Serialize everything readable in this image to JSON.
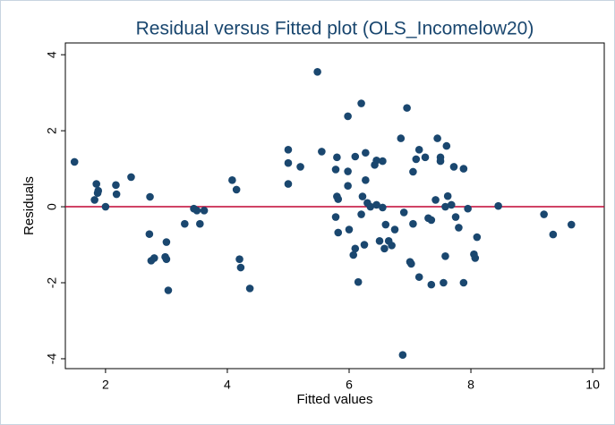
{
  "chart_data": {
    "type": "scatter",
    "title": "Residual versus Fitted plot (OLS_Incomelow20)",
    "x_label": "Fitted values",
    "y_label": "Residuals",
    "color": "#1a476f",
    "refline": 0,
    "refline_color": "#c10534",
    "grid": false,
    "xlim": [
      1.34,
      10.19
    ],
    "ylim": [
      -4.26,
      4.31
    ],
    "xticks": [
      2,
      4,
      6,
      8,
      10
    ],
    "yticks": [
      -4,
      -2,
      0,
      2,
      4
    ],
    "x": [
      1.49,
      1.85,
      1.88,
      1.87,
      1.82,
      2.0,
      2.17,
      2.18,
      2.42,
      2.73,
      2.72,
      2.75,
      2.8,
      2.98,
      3.0,
      3.0,
      3.03,
      3.3,
      3.45,
      3.5,
      3.55,
      3.62,
      4.08,
      4.15,
      4.2,
      4.22,
      4.37,
      5.0,
      5.0,
      5.0,
      5.2,
      5.48,
      5.55,
      5.8,
      5.78,
      5.8,
      5.82,
      5.78,
      5.82,
      5.98,
      5.98,
      5.98,
      6.0,
      6.1,
      6.1,
      6.07,
      6.15,
      6.2,
      6.2,
      6.22,
      6.25,
      6.27,
      6.27,
      6.3,
      6.35,
      6.42,
      6.45,
      6.45,
      6.5,
      6.55,
      6.55,
      6.58,
      6.6,
      6.65,
      6.7,
      6.75,
      6.85,
      6.88,
      6.9,
      6.95,
      7.0,
      7.02,
      7.05,
      7.05,
      7.1,
      7.15,
      7.15,
      7.25,
      7.3,
      7.35,
      7.35,
      7.42,
      7.45,
      7.5,
      7.5,
      7.55,
      7.58,
      7.58,
      7.6,
      7.62,
      7.68,
      7.72,
      7.75,
      7.8,
      7.88,
      7.88,
      7.95,
      8.05,
      8.07,
      8.1,
      8.45,
      9.2,
      9.35,
      9.65
    ],
    "values": [
      1.18,
      0.6,
      0.42,
      0.36,
      0.18,
      0.0,
      0.57,
      0.33,
      0.78,
      0.26,
      -0.72,
      -1.42,
      -1.35,
      -1.32,
      -1.38,
      -0.93,
      -2.2,
      -0.45,
      -0.05,
      -0.1,
      -0.45,
      -0.1,
      0.7,
      0.45,
      -1.38,
      -1.6,
      -2.15,
      1.5,
      1.15,
      0.6,
      1.05,
      3.55,
      1.45,
      1.3,
      0.98,
      0.27,
      0.2,
      -0.27,
      -0.68,
      2.38,
      0.93,
      0.55,
      -0.6,
      1.32,
      -1.1,
      -1.27,
      -1.98,
      2.72,
      -0.2,
      0.27,
      -1.0,
      1.42,
      0.7,
      0.1,
      0.0,
      1.1,
      1.22,
      0.05,
      -0.9,
      1.2,
      -0.02,
      -1.1,
      -0.47,
      -0.9,
      -1.02,
      -0.6,
      1.8,
      -3.9,
      -0.15,
      2.6,
      -1.45,
      -1.5,
      -0.45,
      0.92,
      1.25,
      1.5,
      -1.85,
      1.3,
      -0.3,
      -0.35,
      -2.05,
      0.18,
      1.8,
      1.3,
      1.2,
      -2.0,
      -1.3,
      0.0,
      1.6,
      0.28,
      0.05,
      1.05,
      -0.27,
      -0.55,
      1.0,
      -2.0,
      -0.05,
      -1.25,
      -1.35,
      -0.8,
      0.02,
      -0.2,
      -0.73,
      -0.47
    ]
  }
}
